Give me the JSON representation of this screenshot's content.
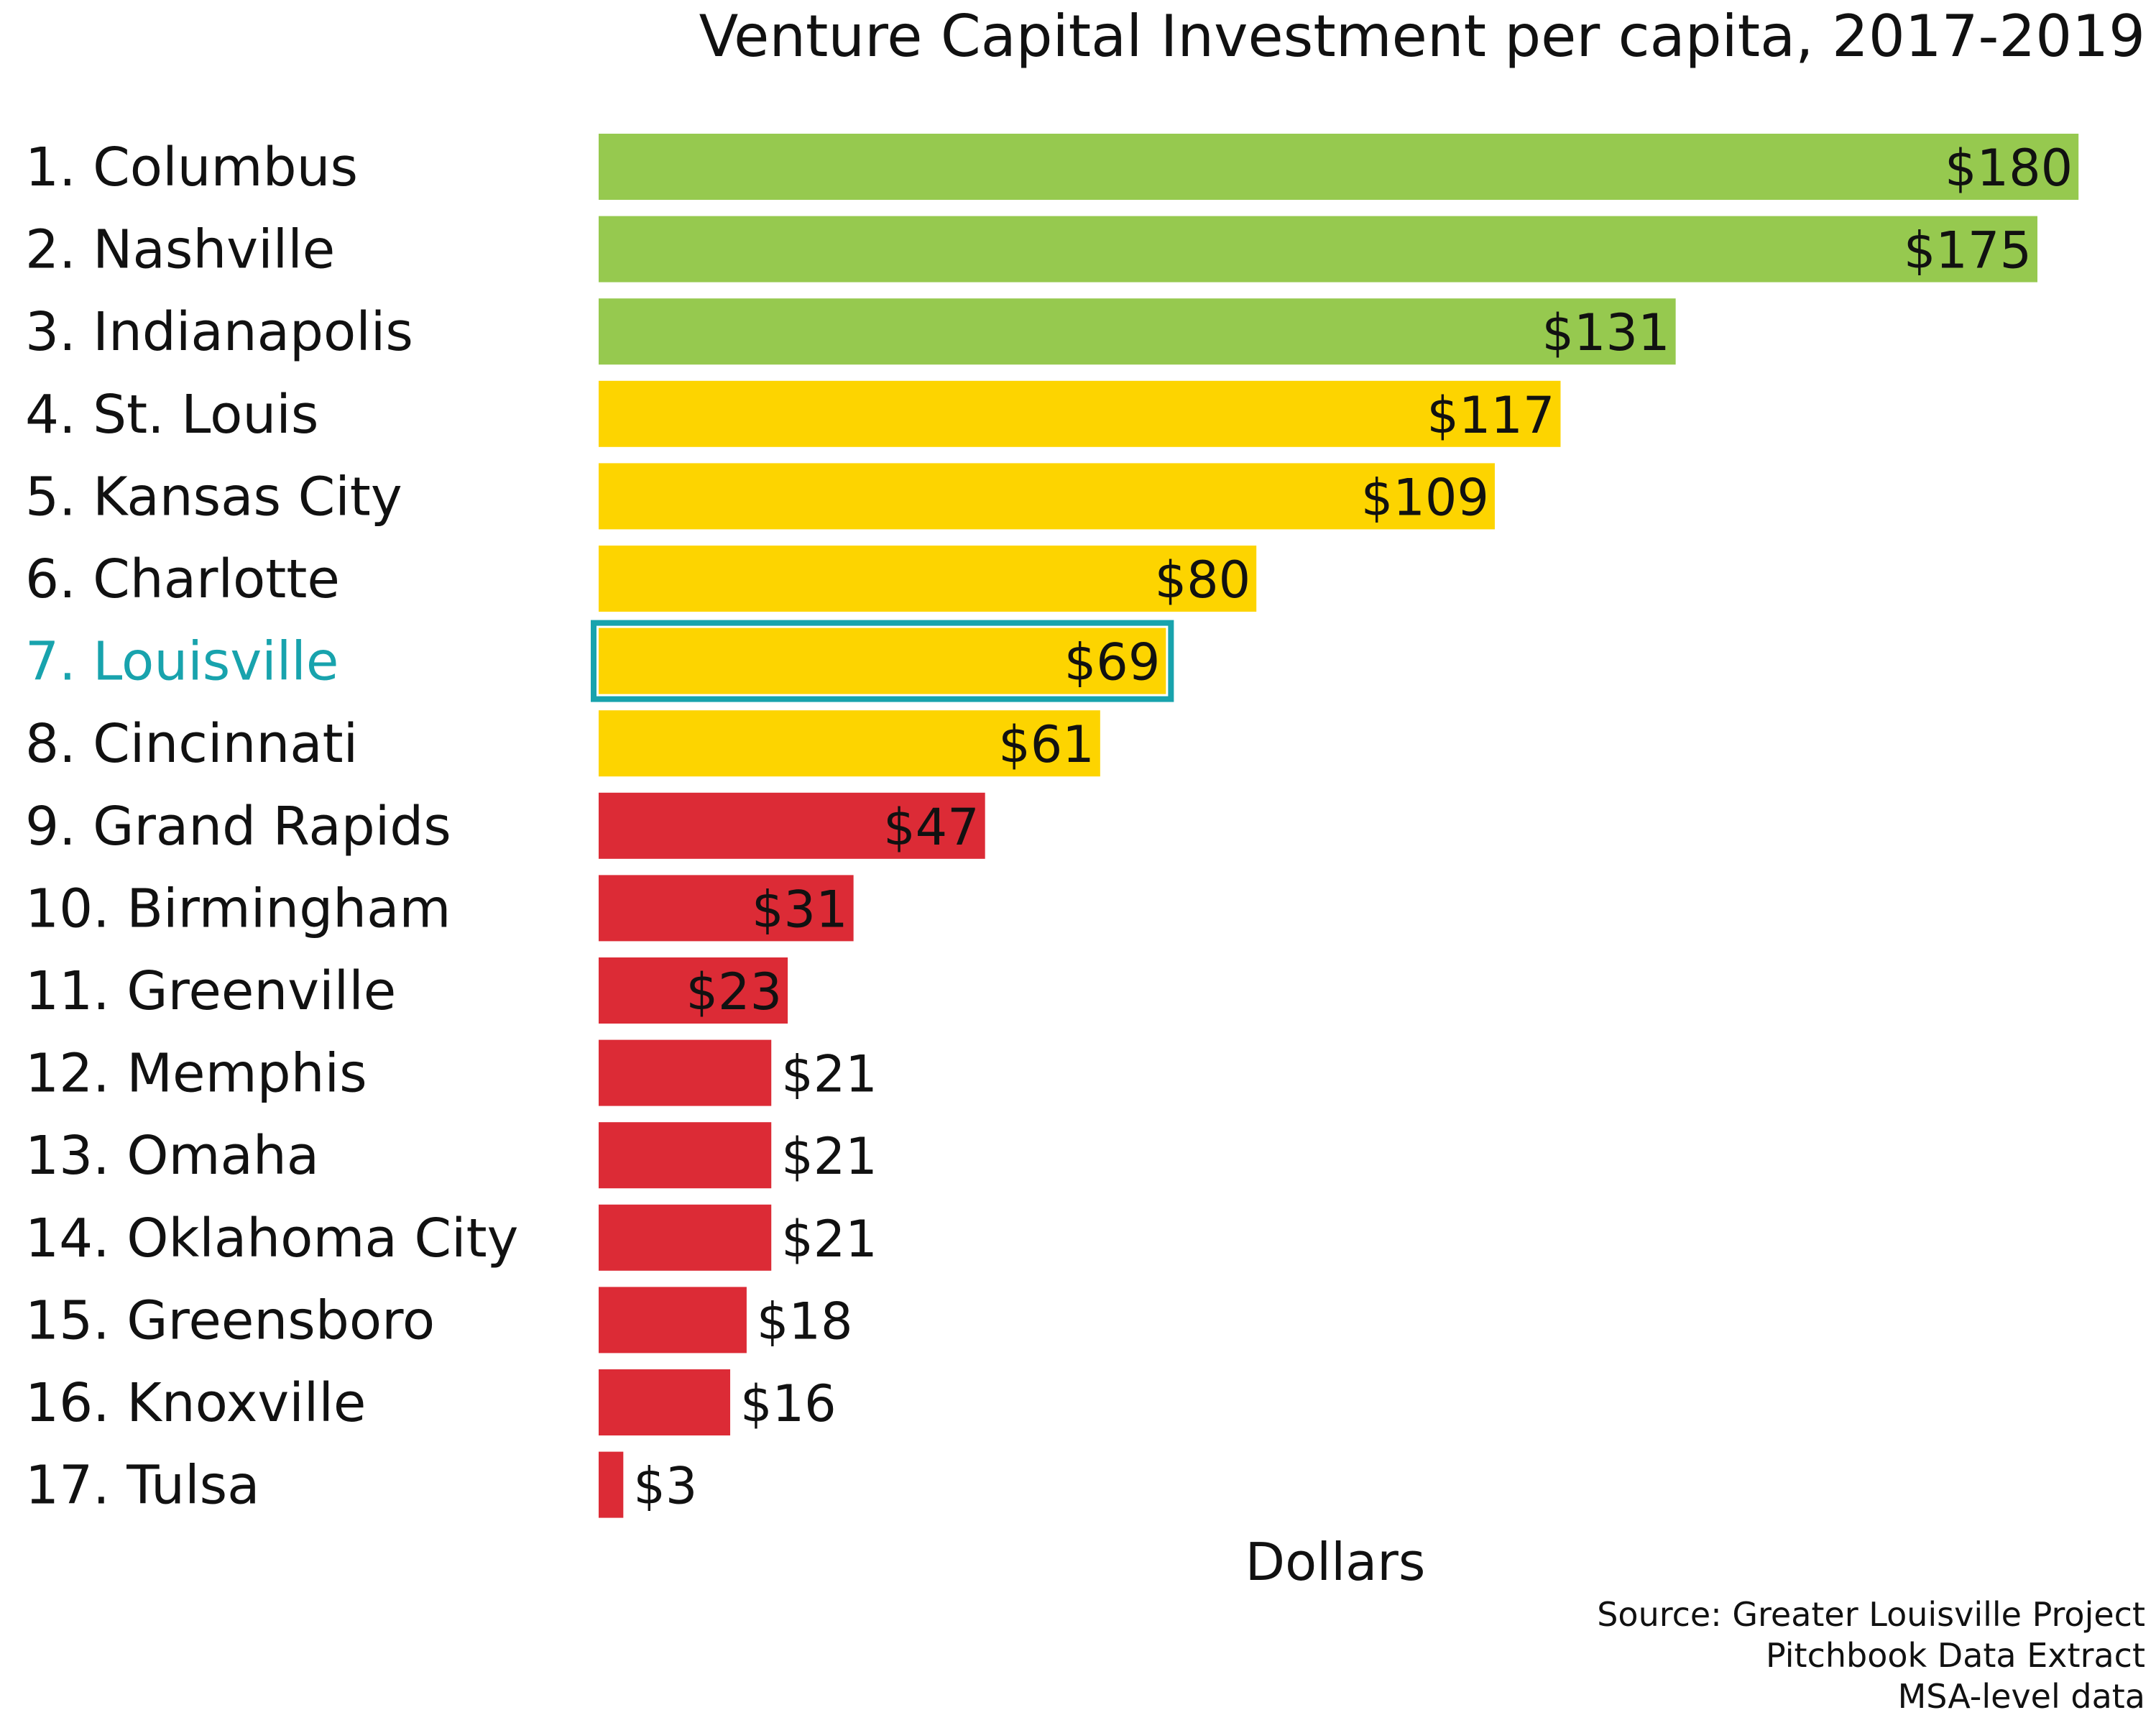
{
  "chart_data": {
    "type": "bar",
    "orientation": "horizontal",
    "title": "Venture Capital Investment per capita, 2017-2019",
    "xlabel": "Dollars",
    "ylabel": "",
    "xlim": [
      0,
      180
    ],
    "grid": false,
    "legend": "none",
    "categories": [
      "1. Columbus",
      "2. Nashville",
      "3. Indianapolis",
      "4. St. Louis",
      "5. Kansas City",
      "6. Charlotte",
      "7. Louisville",
      "8. Cincinnati",
      "9. Grand Rapids",
      "10. Birmingham",
      "11. Greenville",
      "12. Memphis",
      "13. Omaha",
      "14. Oklahoma City",
      "15. Greensboro",
      "16. Knoxville",
      "17. Tulsa"
    ],
    "values": [
      180,
      175,
      131,
      117,
      109,
      80,
      69,
      61,
      47,
      31,
      23,
      21,
      21,
      21,
      18,
      16,
      3
    ],
    "value_labels": [
      "$180",
      "$175",
      "$131",
      "$117",
      "$109",
      "$80",
      "$69",
      "$61",
      "$47",
      "$31",
      "$23",
      "$21",
      "$21",
      "$21",
      "$18",
      "$16",
      "$3"
    ],
    "tiers": [
      "green",
      "green",
      "green",
      "yellow",
      "yellow",
      "yellow",
      "yellow",
      "yellow",
      "red",
      "red",
      "red",
      "red",
      "red",
      "red",
      "red",
      "red",
      "red"
    ],
    "colors": {
      "green": "#96c94f",
      "yellow": "#fdd400",
      "red": "#dc2b36",
      "highlight": "#18a3ad",
      "text": "#111111"
    },
    "highlight_index": 6,
    "source_lines": [
      "Source: Greater Louisville Project",
      "Pitchbook Data Extract",
      "MSA-level data"
    ]
  }
}
